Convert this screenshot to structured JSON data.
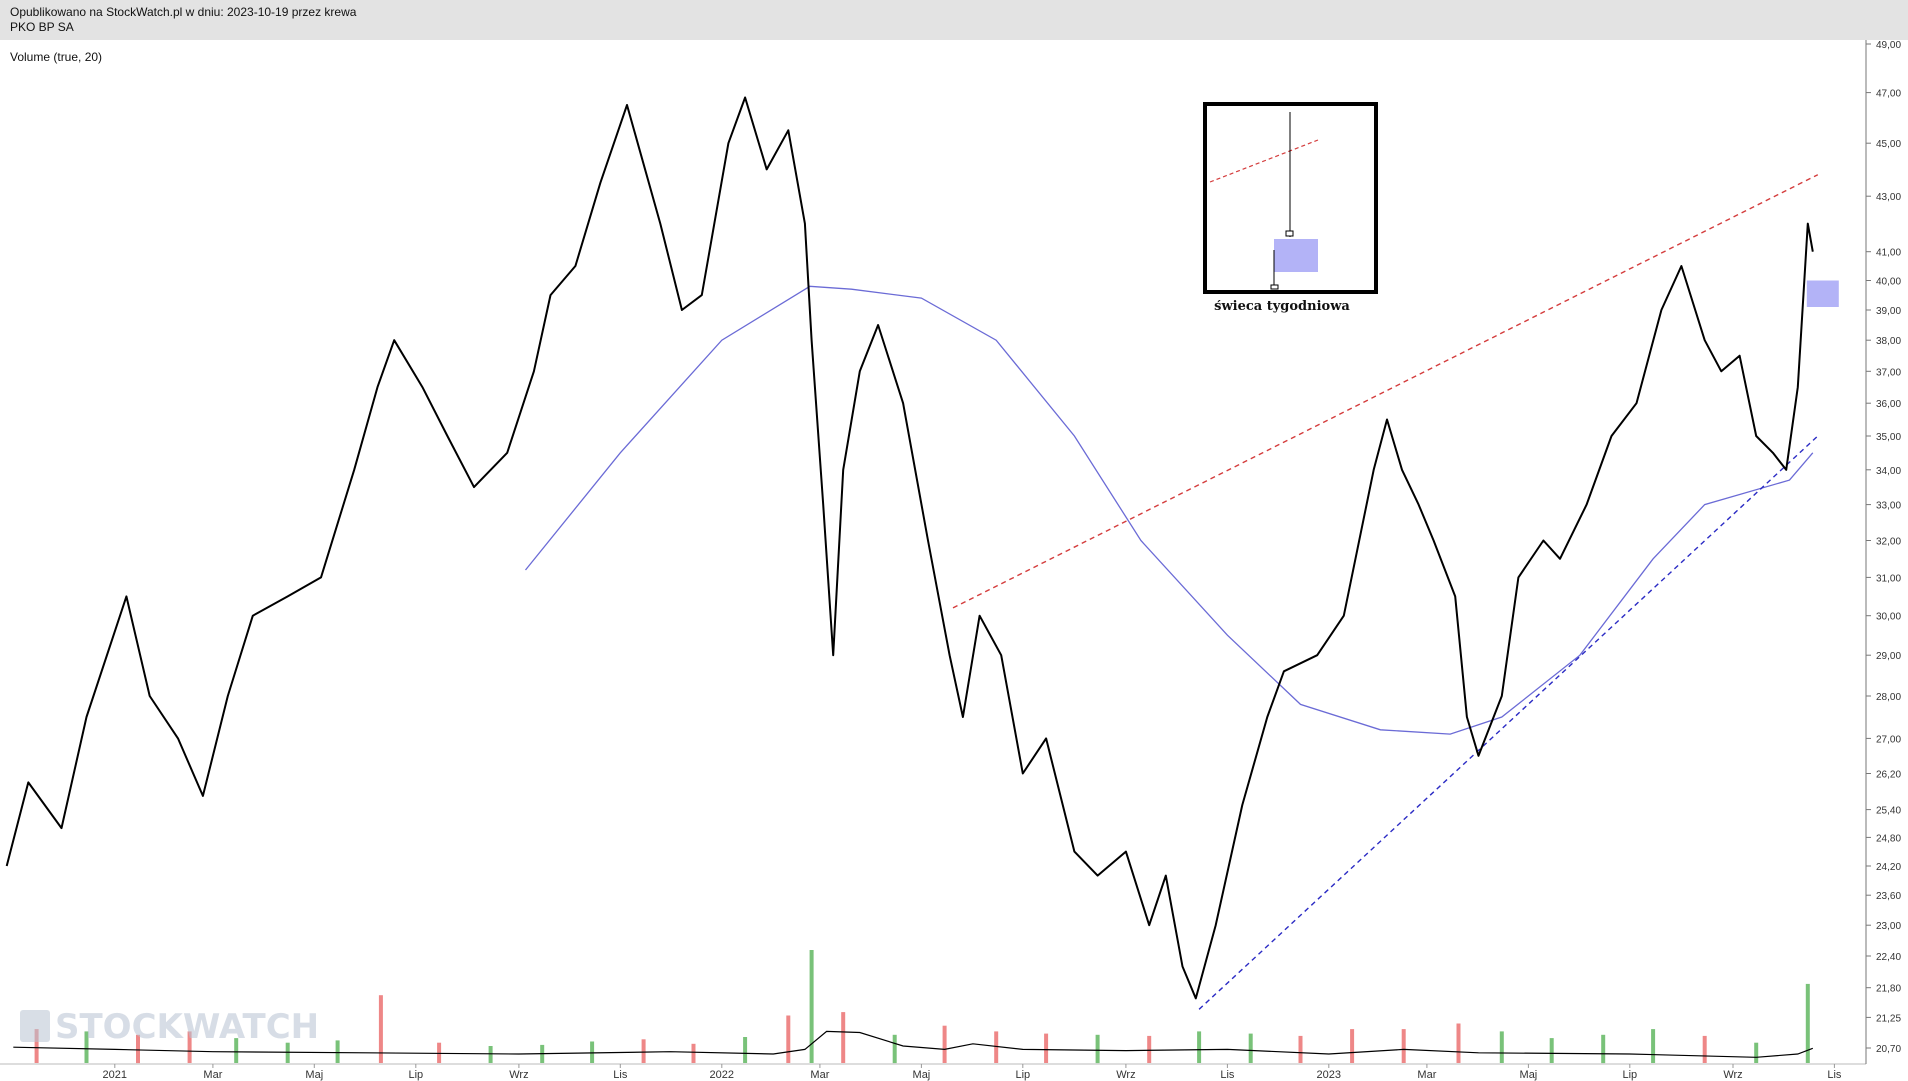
{
  "header": {
    "published": "Opublikowano na StockWatch.pl w dniu: 2023-10-19 przez krewa",
    "ticker": "PKO BP SA"
  },
  "indicator_label": "Volume (true, 20)",
  "watermark": "STOCKWATCH",
  "inset_caption": "świeca tygodniowa",
  "colors": {
    "price": "#000000",
    "ma_line": "#6b6bd6",
    "resistance": "#d43c3c",
    "support": "#2b2bc4",
    "volume_up": "#79c279",
    "volume_down": "#ee8787",
    "volume_ma": "#000000",
    "candle_body": "#b3b3f7"
  },
  "chart_data": {
    "type": "line",
    "title": "PKO BP SA",
    "x_type": "date",
    "y_scale": "log",
    "grid": false,
    "y_ticks": [
      "20,70",
      "21,25",
      "21,80",
      "22,40",
      "23,00",
      "23,60",
      "24,20",
      "24,80",
      "25,40",
      "26,20",
      "27,00",
      "28,00",
      "29,00",
      "30,00",
      "31,00",
      "32,00",
      "33,00",
      "34,00",
      "35,00",
      "36,00",
      "37,00",
      "38,00",
      "39,00",
      "40,00",
      "41,00",
      "43,00",
      "45,00",
      "47,00",
      "49,00"
    ],
    "x_ticks": [
      "2021",
      "Mar",
      "Maj",
      "Lip",
      "Wrz",
      "Lis",
      "2022",
      "Mar",
      "Maj",
      "Lip",
      "Wrz",
      "Lis",
      "2023",
      "Mar",
      "Maj",
      "Lip",
      "Wrz",
      "Lis"
    ],
    "series": [
      {
        "key": "close",
        "points": [
          [
            "2020-10-28",
            24.2
          ],
          [
            "2020-11-10",
            26.0
          ],
          [
            "2020-11-30",
            25.0
          ],
          [
            "2020-12-15",
            27.5
          ],
          [
            "2021-01-08",
            30.5
          ],
          [
            "2021-01-22",
            28.0
          ],
          [
            "2021-02-08",
            27.0
          ],
          [
            "2021-02-23",
            25.7
          ],
          [
            "2021-03-10",
            28.0
          ],
          [
            "2021-03-25",
            30.0
          ],
          [
            "2021-04-15",
            30.5
          ],
          [
            "2021-05-05",
            31.0
          ],
          [
            "2021-05-25",
            34.0
          ],
          [
            "2021-06-08",
            36.5
          ],
          [
            "2021-06-18",
            38.0
          ],
          [
            "2021-07-05",
            36.5
          ],
          [
            "2021-07-20",
            35.0
          ],
          [
            "2021-08-05",
            33.5
          ],
          [
            "2021-08-25",
            34.5
          ],
          [
            "2021-09-10",
            37.0
          ],
          [
            "2021-09-20",
            39.5
          ],
          [
            "2021-10-05",
            40.5
          ],
          [
            "2021-10-20",
            43.5
          ],
          [
            "2021-11-05",
            46.5
          ],
          [
            "2021-11-25",
            42.0
          ],
          [
            "2021-12-08",
            39.0
          ],
          [
            "2021-12-20",
            39.5
          ],
          [
            "2022-01-05",
            45.0
          ],
          [
            "2022-01-15",
            46.8
          ],
          [
            "2022-01-28",
            44.0
          ],
          [
            "2022-02-10",
            45.5
          ],
          [
            "2022-02-20",
            42.0
          ],
          [
            "2022-02-24",
            38.0
          ],
          [
            "2022-03-03",
            33.0
          ],
          [
            "2022-03-09",
            29.0
          ],
          [
            "2022-03-15",
            34.0
          ],
          [
            "2022-03-25",
            37.0
          ],
          [
            "2022-04-05",
            38.5
          ],
          [
            "2022-04-20",
            36.0
          ],
          [
            "2022-05-05",
            32.0
          ],
          [
            "2022-05-18",
            29.0
          ],
          [
            "2022-05-26",
            27.5
          ],
          [
            "2022-06-05",
            30.0
          ],
          [
            "2022-06-18",
            29.0
          ],
          [
            "2022-07-01",
            26.2
          ],
          [
            "2022-07-15",
            27.0
          ],
          [
            "2022-08-01",
            24.5
          ],
          [
            "2022-08-15",
            24.0
          ],
          [
            "2022-09-01",
            24.5
          ],
          [
            "2022-09-15",
            23.0
          ],
          [
            "2022-09-25",
            24.0
          ],
          [
            "2022-10-05",
            22.2
          ],
          [
            "2022-10-13",
            21.6
          ],
          [
            "2022-10-25",
            23.0
          ],
          [
            "2022-11-10",
            25.5
          ],
          [
            "2022-11-25",
            27.5
          ],
          [
            "2022-12-05",
            28.6
          ],
          [
            "2022-12-25",
            29.0
          ],
          [
            "2023-01-10",
            30.0
          ],
          [
            "2023-01-28",
            34.0
          ],
          [
            "2023-02-05",
            35.5
          ],
          [
            "2023-02-14",
            34.0
          ],
          [
            "2023-02-24",
            33.0
          ],
          [
            "2023-03-05",
            32.0
          ],
          [
            "2023-03-18",
            30.5
          ],
          [
            "2023-03-25",
            27.5
          ],
          [
            "2023-04-01",
            26.6
          ],
          [
            "2023-04-15",
            28.0
          ],
          [
            "2023-04-25",
            31.0
          ],
          [
            "2023-05-10",
            32.0
          ],
          [
            "2023-05-20",
            31.5
          ],
          [
            "2023-06-05",
            33.0
          ],
          [
            "2023-06-20",
            35.0
          ],
          [
            "2023-07-05",
            36.0
          ],
          [
            "2023-07-20",
            39.0
          ],
          [
            "2023-08-01",
            40.5
          ],
          [
            "2023-08-15",
            38.0
          ],
          [
            "2023-08-25",
            37.0
          ],
          [
            "2023-09-05",
            37.5
          ],
          [
            "2023-09-15",
            35.0
          ],
          [
            "2023-09-25",
            34.5
          ],
          [
            "2023-10-03",
            34.0
          ],
          [
            "2023-10-10",
            36.5
          ],
          [
            "2023-10-16",
            42.0
          ],
          [
            "2023-10-19",
            41.0
          ]
        ]
      },
      {
        "key": "ma",
        "points": [
          [
            "2021-09-05",
            31.2
          ],
          [
            "2021-11-01",
            34.5
          ],
          [
            "2022-01-01",
            38.0
          ],
          [
            "2022-02-23",
            39.8
          ],
          [
            "2022-03-20",
            39.7
          ],
          [
            "2022-05-01",
            39.4
          ],
          [
            "2022-06-15",
            38.0
          ],
          [
            "2022-08-01",
            35.0
          ],
          [
            "2022-09-10",
            32.0
          ],
          [
            "2022-11-01",
            29.5
          ],
          [
            "2022-12-15",
            27.8
          ],
          [
            "2023-02-01",
            27.2
          ],
          [
            "2023-03-15",
            27.1
          ],
          [
            "2023-04-15",
            27.5
          ],
          [
            "2023-06-01",
            29.0
          ],
          [
            "2023-07-15",
            31.5
          ],
          [
            "2023-08-15",
            33.0
          ],
          [
            "2023-10-05",
            33.7
          ],
          [
            "2023-10-19",
            34.5
          ]
        ]
      }
    ],
    "trendlines": [
      {
        "key": "resistance",
        "from": [
          "2022-05-20",
          30.2
        ],
        "to": [
          "2023-10-22",
          43.8
        ]
      },
      {
        "key": "support",
        "from": [
          "2022-10-15",
          21.4
        ],
        "to": [
          "2023-10-22",
          35.0
        ]
      }
    ],
    "weekly_candle": {
      "open": 40.0,
      "close": 39.1,
      "high": 40.0,
      "low": 39.1
    },
    "volume": {
      "ylim": [
        0,
        100
      ],
      "bars": [
        [
          "2020-11-15",
          30,
          "down"
        ],
        [
          "2020-12-15",
          28,
          "up"
        ],
        [
          "2021-01-15",
          25,
          "down"
        ],
        [
          "2021-02-15",
          28,
          "down"
        ],
        [
          "2021-03-15",
          22,
          "up"
        ],
        [
          "2021-04-15",
          18,
          "up"
        ],
        [
          "2021-05-15",
          20,
          "up"
        ],
        [
          "2021-06-10",
          60,
          "down"
        ],
        [
          "2021-07-15",
          18,
          "down"
        ],
        [
          "2021-08-15",
          15,
          "up"
        ],
        [
          "2021-09-15",
          16,
          "up"
        ],
        [
          "2021-10-15",
          19,
          "up"
        ],
        [
          "2021-11-15",
          21,
          "down"
        ],
        [
          "2021-12-15",
          17,
          "down"
        ],
        [
          "2022-01-15",
          23,
          "up"
        ],
        [
          "2022-02-10",
          42,
          "down"
        ],
        [
          "2022-02-24",
          100,
          "up"
        ],
        [
          "2022-03-15",
          45,
          "down"
        ],
        [
          "2022-04-15",
          25,
          "up"
        ],
        [
          "2022-05-15",
          33,
          "down"
        ],
        [
          "2022-06-15",
          28,
          "down"
        ],
        [
          "2022-07-15",
          26,
          "down"
        ],
        [
          "2022-08-15",
          25,
          "up"
        ],
        [
          "2022-09-15",
          24,
          "down"
        ],
        [
          "2022-10-15",
          28,
          "up"
        ],
        [
          "2022-11-15",
          26,
          "up"
        ],
        [
          "2022-12-15",
          24,
          "down"
        ],
        [
          "2023-01-15",
          30,
          "down"
        ],
        [
          "2023-02-15",
          30,
          "down"
        ],
        [
          "2023-03-20",
          35,
          "down"
        ],
        [
          "2023-04-15",
          28,
          "up"
        ],
        [
          "2023-05-15",
          22,
          "up"
        ],
        [
          "2023-06-15",
          25,
          "up"
        ],
        [
          "2023-07-15",
          30,
          "up"
        ],
        [
          "2023-08-15",
          24,
          "down"
        ],
        [
          "2023-09-15",
          18,
          "up"
        ],
        [
          "2023-10-16",
          70,
          "up"
        ]
      ],
      "ma": [
        [
          "2020-11-01",
          14
        ],
        [
          "2021-01-01",
          12
        ],
        [
          "2021-03-01",
          10
        ],
        [
          "2021-06-01",
          9
        ],
        [
          "2021-09-01",
          8
        ],
        [
          "2021-12-01",
          10
        ],
        [
          "2022-02-01",
          8
        ],
        [
          "2022-02-20",
          12
        ],
        [
          "2022-03-05",
          28
        ],
        [
          "2022-03-25",
          27
        ],
        [
          "2022-04-20",
          15
        ],
        [
          "2022-05-15",
          12
        ],
        [
          "2022-06-01",
          17
        ],
        [
          "2022-07-01",
          12
        ],
        [
          "2022-09-01",
          11
        ],
        [
          "2022-11-01",
          12
        ],
        [
          "2023-01-01",
          8
        ],
        [
          "2023-02-15",
          12
        ],
        [
          "2023-04-01",
          9
        ],
        [
          "2023-07-01",
          8
        ],
        [
          "2023-09-15",
          5
        ],
        [
          "2023-10-10",
          8
        ],
        [
          "2023-10-19",
          13
        ]
      ]
    }
  }
}
